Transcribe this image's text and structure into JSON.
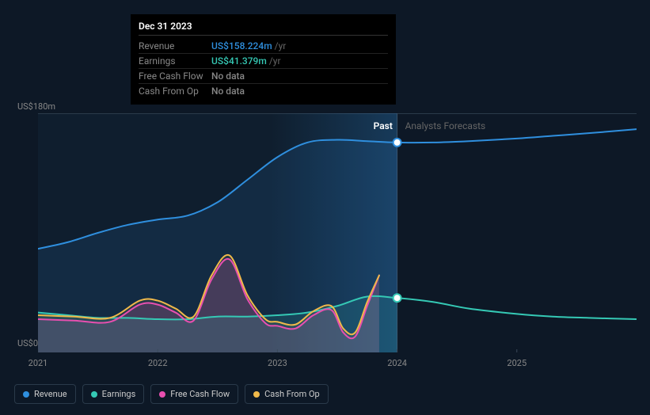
{
  "tooltip": {
    "date": "Dec 31 2023",
    "rows": [
      {
        "label": "Revenue",
        "value": "US$158.224m",
        "unit": "/yr",
        "color": "#2f8fde"
      },
      {
        "label": "Earnings",
        "value": "US$41.379m",
        "unit": "/yr",
        "color": "#35c9b5"
      },
      {
        "label": "Free Cash Flow",
        "value": "No data",
        "unit": "",
        "color": "#888"
      },
      {
        "label": "Cash From Op",
        "value": "No data",
        "unit": "",
        "color": "#888"
      }
    ]
  },
  "chart": {
    "type": "area-line",
    "background": "#0d1826",
    "ylim": [
      0,
      180
    ],
    "y_ticks": [
      {
        "v": 180,
        "label": "US$180m"
      },
      {
        "v": 0,
        "label": "US$0"
      }
    ],
    "x_domain": [
      2021,
      2026
    ],
    "x_ticks": [
      {
        "v": 2021,
        "label": "2021"
      },
      {
        "v": 2022,
        "label": "2022"
      },
      {
        "v": 2023,
        "label": "2023"
      },
      {
        "v": 2024,
        "label": "2024"
      },
      {
        "v": 2025,
        "label": "2025"
      }
    ],
    "divider_x": 2024,
    "marker_x": 2024,
    "region_labels": {
      "past": "Past",
      "forecast": "Analysts Forecasts"
    },
    "past_shade": "#132434",
    "series": [
      {
        "key": "revenue",
        "label": "Revenue",
        "color": "#2f8fde",
        "line_width": 2,
        "fill_opacity": 0.12,
        "fill_until": 2024,
        "points": [
          [
            2021,
            78
          ],
          [
            2021.25,
            83
          ],
          [
            2021.5,
            90
          ],
          [
            2021.75,
            96
          ],
          [
            2022,
            100
          ],
          [
            2022.25,
            103
          ],
          [
            2022.5,
            113
          ],
          [
            2022.75,
            130
          ],
          [
            2023,
            147
          ],
          [
            2023.25,
            158
          ],
          [
            2023.5,
            160
          ],
          [
            2023.75,
            159
          ],
          [
            2024,
            158
          ],
          [
            2024.3,
            158
          ],
          [
            2024.6,
            159
          ],
          [
            2025,
            161
          ],
          [
            2025.3,
            163
          ],
          [
            2025.6,
            165
          ],
          [
            2026,
            168
          ]
        ]
      },
      {
        "key": "earnings",
        "label": "Earnings",
        "color": "#35c9b5",
        "line_width": 2,
        "fill_opacity": 0.15,
        "fill_until": 2024,
        "points": [
          [
            2021,
            30
          ],
          [
            2021.25,
            28
          ],
          [
            2021.5,
            26
          ],
          [
            2021.75,
            26
          ],
          [
            2022,
            25
          ],
          [
            2022.25,
            25
          ],
          [
            2022.5,
            27
          ],
          [
            2022.75,
            27
          ],
          [
            2023,
            28
          ],
          [
            2023.25,
            30
          ],
          [
            2023.5,
            35
          ],
          [
            2023.75,
            42
          ],
          [
            2024,
            41
          ],
          [
            2024.3,
            38
          ],
          [
            2024.6,
            33
          ],
          [
            2025,
            29
          ],
          [
            2025.3,
            27
          ],
          [
            2025.6,
            26
          ],
          [
            2026,
            25
          ]
        ]
      },
      {
        "key": "fcf",
        "label": "Free Cash Flow",
        "color": "#e84fb0",
        "line_width": 2,
        "fill_opacity": 0.18,
        "fill_until": 2023.85,
        "points": [
          [
            2021,
            25
          ],
          [
            2021.3,
            24
          ],
          [
            2021.6,
            23
          ],
          [
            2021.85,
            36
          ],
          [
            2022,
            36
          ],
          [
            2022.15,
            30
          ],
          [
            2022.3,
            24
          ],
          [
            2022.45,
            55
          ],
          [
            2022.6,
            70
          ],
          [
            2022.75,
            40
          ],
          [
            2022.9,
            22
          ],
          [
            2023,
            20
          ],
          [
            2023.15,
            18
          ],
          [
            2023.3,
            28
          ],
          [
            2023.45,
            32
          ],
          [
            2023.55,
            15
          ],
          [
            2023.65,
            12
          ],
          [
            2023.75,
            35
          ],
          [
            2023.85,
            58
          ]
        ]
      },
      {
        "key": "cfo",
        "label": "Cash From Op",
        "color": "#f0b94a",
        "line_width": 2,
        "fill_opacity": 0.1,
        "fill_until": 2023.85,
        "points": [
          [
            2021,
            28
          ],
          [
            2021.3,
            27
          ],
          [
            2021.6,
            26
          ],
          [
            2021.85,
            39
          ],
          [
            2022,
            39
          ],
          [
            2022.15,
            33
          ],
          [
            2022.3,
            27
          ],
          [
            2022.45,
            58
          ],
          [
            2022.6,
            73
          ],
          [
            2022.75,
            43
          ],
          [
            2022.9,
            25
          ],
          [
            2023,
            23
          ],
          [
            2023.15,
            21
          ],
          [
            2023.3,
            31
          ],
          [
            2023.45,
            35
          ],
          [
            2023.55,
            18
          ],
          [
            2023.65,
            15
          ],
          [
            2023.75,
            38
          ],
          [
            2023.85,
            58
          ]
        ]
      }
    ],
    "markers": [
      {
        "x": 2024,
        "y": 158,
        "stroke": "#2f8fde"
      },
      {
        "x": 2024,
        "y": 41,
        "stroke": "#35c9b5"
      }
    ]
  },
  "legend": [
    {
      "label": "Revenue",
      "color": "#2f8fde"
    },
    {
      "label": "Earnings",
      "color": "#35c9b5"
    },
    {
      "label": "Free Cash Flow",
      "color": "#e84fb0"
    },
    {
      "label": "Cash From Op",
      "color": "#f0b94a"
    }
  ]
}
